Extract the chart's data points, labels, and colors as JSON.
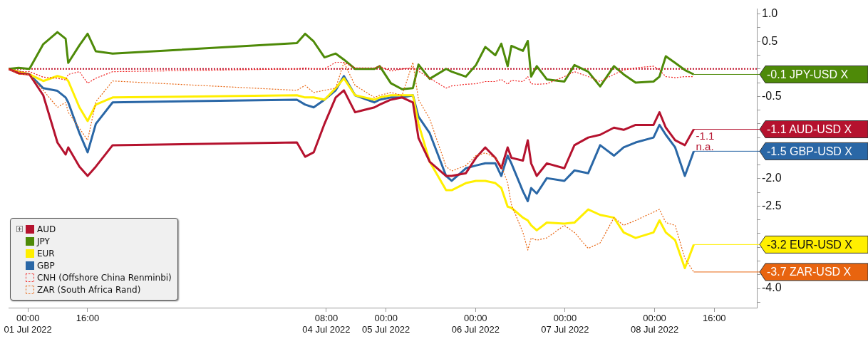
{
  "chart_data": {
    "type": "line",
    "x": [
      "2022-06-30T18:48",
      "2022-06-30T21:30",
      "2022-07-01T00:24",
      "2022-07-01T04:06",
      "2022-07-01T07:54",
      "2022-07-01T10:06",
      "2022-07-01T10:48",
      "2022-07-01T13:48",
      "2022-07-01T16:00",
      "2022-07-01T18:12",
      "2022-07-01T22:42",
      "2022-07-04T00:06",
      "2022-07-04T02:18",
      "2022-07-04T04:36",
      "2022-07-04T07:30",
      "2022-07-04T10:30",
      "2022-07-04T12:42",
      "2022-07-04T15:42",
      "2022-07-04T20:54",
      "2022-07-04T22:18",
      "2022-07-05T01:18",
      "2022-07-05T04:18",
      "2022-07-05T07:12",
      "2022-07-05T08:42",
      "2022-07-05T11:42",
      "2022-07-05T16:06",
      "2022-07-05T17:36",
      "2022-07-05T21:24",
      "2022-07-06T00:06",
      "2022-07-06T02:36",
      "2022-07-06T05:18",
      "2022-07-06T06:54",
      "2022-07-06T08:36",
      "2022-07-06T09:36",
      "2022-07-06T12:42",
      "2022-07-06T14:00",
      "2022-07-06T14:54",
      "2022-07-06T16:24",
      "2022-07-06T19:06",
      "2022-07-06T23:48",
      "2022-07-07T02:30",
      "2022-07-07T06:12",
      "2022-07-07T09:24",
      "2022-07-07T13:06",
      "2022-07-07T15:42",
      "2022-07-07T18:54",
      "2022-07-07T23:42",
      "2022-07-08T01:18",
      "2022-07-08T03:00",
      "2022-07-08T05:30",
      "2022-07-08T08:06",
      "2022-07-08T10:30"
    ],
    "series": [
      {
        "name": "AUD",
        "color": "#b5122e",
        "line_style": "solid",
        "values": [
          0,
          -0.08,
          -0.1,
          -0.48,
          -1.34,
          -1.56,
          -1.43,
          -1.78,
          -1.95,
          -1.78,
          -1.39,
          -1.34,
          -1.6,
          -1.52,
          -1.0,
          -0.52,
          -0.39,
          -0.79,
          -0.7,
          -0.65,
          -0.56,
          -0.52,
          -0.61,
          -1.26,
          -1.69,
          -1.95,
          -1.95,
          -1.9,
          -1.62,
          -1.43,
          -1.62,
          -1.81,
          -1.43,
          -1.62,
          -1.67,
          -1.3,
          -1.72,
          -1.95,
          -1.72,
          -1.81,
          -1.39,
          -1.25,
          -1.2,
          -1.07,
          -1.11,
          -1.02,
          -1.02,
          -0.79,
          -1.07,
          -1.3,
          -1.39,
          -1.1
        ]
      },
      {
        "name": "JPY",
        "color": "#4e8a08",
        "line_style": "solid",
        "values": [
          0,
          0.02,
          0,
          0.45,
          0.67,
          0.55,
          0.11,
          0.43,
          0.64,
          0.32,
          0.28,
          0.47,
          0.64,
          0.5,
          0.21,
          0.28,
          0.17,
          0,
          0,
          0.05,
          -0.26,
          -0.37,
          -0.35,
          0.08,
          -0.18,
          0,
          -0.05,
          -0.14,
          0.07,
          0.4,
          0.25,
          0.46,
          0.05,
          0.42,
          0.33,
          0.51,
          -0.14,
          0.05,
          -0.19,
          -0.23,
          0.07,
          -0.05,
          -0.32,
          0.05,
          -0.1,
          -0.25,
          -0.23,
          -0.14,
          0.23,
          0.11,
          -0.02,
          -0.1
        ]
      },
      {
        "name": "EUR",
        "color": "#ffef00",
        "line_style": "solid",
        "values": [
          0,
          -0.05,
          -0.1,
          -0.22,
          -0.13,
          -0.17,
          -0.22,
          -0.7,
          -0.95,
          -0.65,
          -0.52,
          -0.48,
          -0.52,
          -0.52,
          -0.56,
          -0.35,
          -0.17,
          -0.48,
          -0.56,
          -0.52,
          -0.48,
          -0.48,
          -0.48,
          -1.0,
          -1.69,
          -2.21,
          -2.21,
          -2.08,
          -2.04,
          -2.04,
          -2.08,
          -2.17,
          -2.51,
          -2.53,
          -2.71,
          -2.76,
          -2.85,
          -2.94,
          -2.8,
          -2.82,
          -2.8,
          -2.56,
          -2.66,
          -2.71,
          -2.98,
          -3.08,
          -2.98,
          -2.76,
          -2.98,
          -3.12,
          -3.63,
          -3.2
        ]
      },
      {
        "name": "GBP",
        "color": "#2a67a6",
        "line_style": "solid",
        "values": [
          0,
          null,
          -0.1,
          -0.35,
          -0.4,
          -0.52,
          -0.61,
          -1.17,
          -1.52,
          -1.0,
          -0.61,
          -0.56,
          -0.65,
          -0.7,
          -0.56,
          -0.39,
          -0.13,
          -0.48,
          -0.61,
          -0.56,
          -0.52,
          -0.52,
          -0.48,
          -0.87,
          -1.17,
          -1.95,
          -2.04,
          -1.81,
          -1.76,
          -1.72,
          -1.72,
          -1.95,
          -1.58,
          -1.72,
          -2.23,
          -2.41,
          -2.17,
          -2.27,
          -1.99,
          -2.04,
          -1.85,
          -1.9,
          -1.39,
          -1.58,
          -1.43,
          -1.34,
          -1.25,
          -1.02,
          -1.2,
          -1.43,
          -1.95,
          -1.5
        ]
      },
      {
        "name": "CNH (Offshore China Renminbi)",
        "color": "#f02020",
        "line_style": "dotted",
        "values": [
          0,
          -0.05,
          -0.05,
          -0.15,
          -0.17,
          -0.2,
          -0.1,
          -0.05,
          -0.26,
          -0.17,
          -0.05,
          0,
          0.02,
          0,
          0,
          0.12,
          0.12,
          0.02,
          0.02,
          0.05,
          -0.04,
          0,
          0.02,
          -0.04,
          -0.17,
          -0.35,
          -0.31,
          -0.28,
          -0.27,
          -0.23,
          -0.23,
          -0.19,
          -0.28,
          -0.21,
          -0.23,
          -0.14,
          -0.27,
          -0.28,
          -0.27,
          -0.14,
          -0.05,
          -0.14,
          -0.23,
          -0.1,
          -0.02,
          0.02,
          0.05,
          -0.02,
          -0.14,
          -0.16,
          -0.14,
          -0.14
        ]
      },
      {
        "name": "ZAR (South Africa Rand)",
        "color": "#e8640f",
        "line_style": "dotted",
        "values": [
          0,
          -0.1,
          -0.1,
          -0.39,
          -0.7,
          -0.61,
          -0.79,
          -1.08,
          -1.3,
          -0.6,
          -0.22,
          -0.39,
          -0.3,
          -0.43,
          -0.39,
          -0.35,
          0.12,
          -0.3,
          -0.52,
          -0.48,
          -0.43,
          -0.48,
          0.12,
          -0.56,
          -0.91,
          -1.78,
          -1.86,
          -1.76,
          -1.58,
          -1.53,
          -1.62,
          -1.76,
          -2.08,
          -2.47,
          -2.98,
          -3.3,
          -3.08,
          -3.12,
          -3.08,
          -2.85,
          -2.98,
          -3.27,
          -3.17,
          -2.71,
          -2.85,
          -2.76,
          -2.61,
          -2.56,
          -2.8,
          -2.85,
          -3.45,
          -3.7
        ]
      }
    ],
    "xlim": [
      "2022-06-30T18:48",
      "2022-07-09T03:24"
    ],
    "xticks": [
      {
        "value": "2022-07-01T00:00",
        "label": "00:00\n01 Jul 2022"
      },
      {
        "value": "2022-07-01T16:00",
        "label": "16:00"
      },
      {
        "value": "2022-07-04T08:00",
        "label": "08:00\n04 Jul 2022"
      },
      {
        "value": "2022-07-05T00:00",
        "label": "00:00\n05 Jul 2022"
      },
      {
        "value": "2022-07-06T00:00",
        "label": "00:00\n06 Jul 2022"
      },
      {
        "value": "2022-07-07T00:00",
        "label": "00:00\n07 Jul 2022"
      },
      {
        "value": "2022-07-08T00:00",
        "label": "00:00\n08 Jul 2022"
      },
      {
        "value": "2022-07-08T16:00",
        "label": "16:00"
      }
    ],
    "ylim": [
      -4.35,
      1.1
    ],
    "yticks": [
      {
        "value": 1,
        "label": "1.0"
      },
      {
        "value": 0.75,
        "label": null
      },
      0.5,
      {
        "value": 0.25,
        "label": null
      },
      {
        "value": 0,
        "label": null
      },
      {
        "value": -0.25,
        "label": null
      },
      -0.5,
      {
        "value": -0.75,
        "label": null
      },
      {
        "value": -1,
        "label": null
      },
      {
        "value": -1.25,
        "label": null
      },
      {
        "value": -1.5,
        "label": null
      },
      {
        "value": -1.75,
        "label": null
      },
      {
        "value": -2,
        "label": "-2.0"
      },
      {
        "value": -2.25,
        "label": null
      },
      -2.5,
      {
        "value": -2.75,
        "label": null
      },
      {
        "value": -3,
        "label": null
      },
      {
        "value": -3.25,
        "label": null
      },
      {
        "value": -3.5,
        "label": null
      },
      {
        "value": -3.75,
        "label": null
      },
      {
        "value": -4,
        "label": "-4.0"
      },
      {
        "value": -4.25,
        "label": null
      }
    ],
    "ref_lines": [
      {
        "axis": "y",
        "value": 0,
        "color": "#c0102a",
        "line_style": "dotted"
      }
    ],
    "annotations": [
      {
        "text": "-0.1 JPY-USD X",
        "x": "2022-07-08T10:30",
        "y": -0.1
      },
      {
        "text": "-1.1 AUD-USD X",
        "x": "2022-07-08T10:30",
        "y": -1.1
      },
      {
        "text": "-1.5 GBP-USD X",
        "x": "2022-07-08T10:30",
        "y": -1.5
      },
      {
        "text": "-3.2 EUR-USD X",
        "x": "2022-07-08T10:30",
        "y": -3.2
      },
      {
        "text": "-3.7 ZAR-USD X",
        "x": "2022-07-08T10:30",
        "y": -3.7
      },
      "-1.1",
      "n.a."
    ],
    "legend": "bottom left",
    "grid": false,
    "marker": "none"
  }
}
